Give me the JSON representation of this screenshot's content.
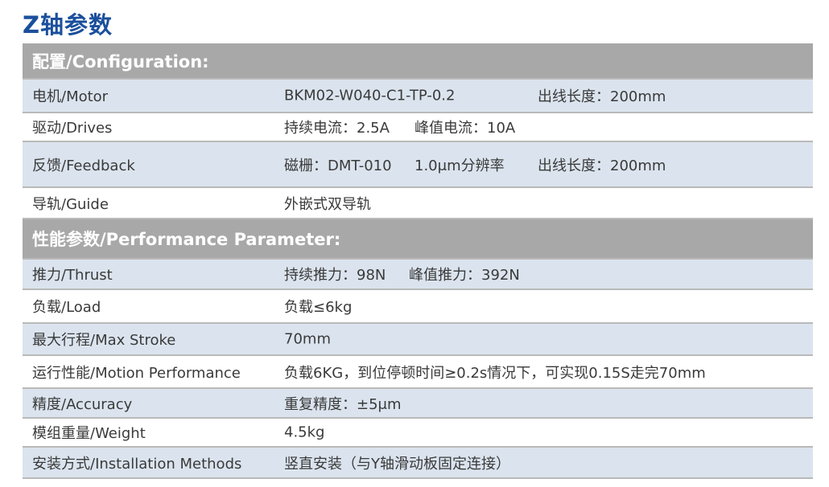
{
  "title": "Z轴参数",
  "sections": {
    "config": "配置/Configuration:",
    "performance": "性能参数/Performance Parameter:"
  },
  "rows": {
    "motor": {
      "label": "电机/Motor",
      "values": [
        "BKM02-W040-C1-TP-0.2",
        "出线长度：200mm"
      ]
    },
    "drives": {
      "label": "驱动/Drives",
      "values": [
        "持续电流：2.5A",
        "峰值电流：10A"
      ]
    },
    "feedback": {
      "label": "反馈/Feedback",
      "values": [
        "磁栅：DMT-010",
        "1.0μm分辨率",
        "出线长度：200mm"
      ]
    },
    "guide": {
      "label": "导轨/Guide",
      "values": [
        "外嵌式双导轨"
      ]
    },
    "thrust": {
      "label": "推力/Thrust",
      "values": [
        "持续推力：98N",
        "峰值推力：392N"
      ]
    },
    "load": {
      "label": "负载/Load",
      "values": [
        "负载≤6kg"
      ]
    },
    "stroke": {
      "label": "最大行程/Max Stroke",
      "values": [
        "70mm"
      ]
    },
    "motion": {
      "label": "运行性能/Motion Performance",
      "values": [
        "负载6KG，到位停顿时间≥0.2s情况下，可实现0.15S走完70mm"
      ]
    },
    "accuracy": {
      "label": "精度/Accuracy",
      "values": [
        "重复精度：±5μm"
      ]
    },
    "weight": {
      "label": "模组重量/Weight",
      "values": [
        "4.5kg"
      ]
    },
    "install": {
      "label": "安装方式/Installation Methods",
      "values": [
        "竖直安装（与Y轴滑动板固定连接）"
      ]
    }
  },
  "colors": {
    "title": "#1b4f9c",
    "header": "#a8a8a8",
    "shade": "#dbe4ee"
  }
}
